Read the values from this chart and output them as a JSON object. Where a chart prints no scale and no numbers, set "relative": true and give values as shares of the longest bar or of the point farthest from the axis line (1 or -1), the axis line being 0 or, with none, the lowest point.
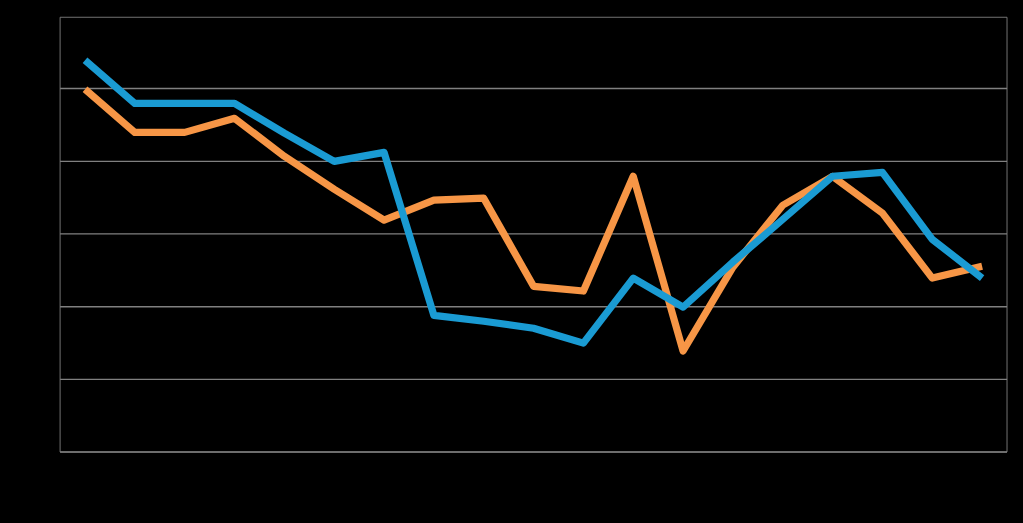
{
  "chart_data": {
    "type": "line",
    "relative": true,
    "grid": "y",
    "categories": [
      null,
      null,
      null,
      null,
      null,
      null,
      null,
      null,
      null,
      null,
      null,
      null,
      null,
      null,
      null,
      null,
      null,
      null,
      null
    ],
    "series": [
      {
        "color": "#f79646",
        "values": [
          0.926,
          0.816,
          0.816,
          0.852,
          0.755,
          0.671,
          0.592,
          0.643,
          0.648,
          0.423,
          0.411,
          0.704,
          0.258,
          0.472,
          0.63,
          0.704,
          0.61,
          0.444,
          0.474
        ]
      },
      {
        "color": "#1a9bd3",
        "values": [
          1,
          0.89,
          0.89,
          0.89,
          0.814,
          0.742,
          0.765,
          0.349,
          0.334,
          0.316,
          0.278,
          0.444,
          0.37,
          0.485,
          0.594,
          0.704,
          0.714,
          0.543,
          0.444
        ]
      }
    ]
  }
}
